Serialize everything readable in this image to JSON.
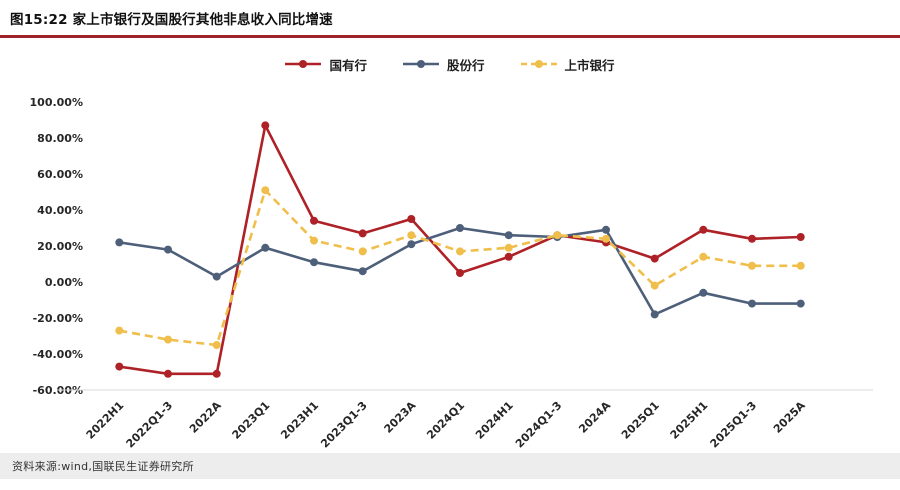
{
  "header": {
    "title": "图15:22 家上市银行及国股行其他非息收入同比增速"
  },
  "footer": {
    "source": "资料来源:wind,国联民生证券研究所"
  },
  "colors": {
    "accent_red": "#9E2328",
    "footer_bg": "#EDEDED"
  },
  "chart_data": {
    "type": "line",
    "title": "图15:22 家上市银行及国股行其他非息收入同比增速",
    "legend_position": "top",
    "grid": false,
    "ylim": [
      -60,
      100
    ],
    "ytick_values": [
      100,
      80,
      60,
      40,
      20,
      0,
      -20,
      -40,
      -60
    ],
    "ytick_labels": [
      "100.00%",
      "80.00%",
      "60.00%",
      "40.00%",
      "20.00%",
      "0.00%",
      "-20.00%",
      "-40.00%",
      "-60.00%"
    ],
    "categories": [
      "2022H1",
      "2022Q1-3",
      "2022A",
      "2023Q1",
      "2023H1",
      "2023Q1-3",
      "2023A",
      "2024Q1",
      "2024H1",
      "2024Q1-3",
      "2024A",
      "2025Q1",
      "2025H1",
      "2025Q1-3",
      "2025A"
    ],
    "series": [
      {
        "key": "guoyouhang",
        "name": "国有行",
        "color": "#AD2127",
        "dash": false,
        "values": [
          -47,
          -51,
          -51,
          87,
          34,
          27,
          35,
          5,
          14,
          26,
          22,
          13,
          29,
          24,
          25
        ]
      },
      {
        "key": "gufenhang",
        "name": "股份行",
        "color": "#4E5F7A",
        "dash": false,
        "values": [
          22,
          18,
          3,
          19,
          11,
          6,
          21,
          30,
          26,
          25,
          29,
          -18,
          -6,
          -12,
          -12
        ]
      },
      {
        "key": "shangshiyinhang",
        "name": "上市银行",
        "color": "#F0BE4A",
        "dash": true,
        "values": [
          -27,
          -32,
          -35,
          51,
          23,
          17,
          26,
          17,
          19,
          26,
          24,
          -2,
          14,
          9,
          9
        ]
      }
    ]
  }
}
